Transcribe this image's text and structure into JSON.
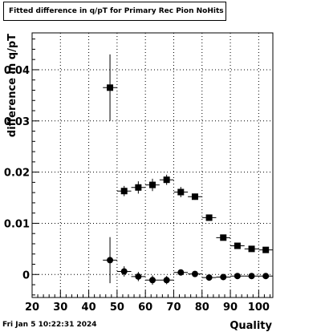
{
  "timestamp": "Fri Jan  5 10:22:31 2024",
  "chart_data": {
    "type": "scatter",
    "title": "Fitted difference in q/pT for Primary Rec Pion NoHits",
    "xlabel": "Quality",
    "ylabel": "difference in q/pT",
    "xlim": [
      20,
      105
    ],
    "ylim": [
      -0.0045,
      0.0472
    ],
    "xticks": [
      "20",
      "30",
      "40",
      "50",
      "60",
      "70",
      "80",
      "90",
      "100"
    ],
    "yticks": [
      "0",
      "0.01",
      "0.02",
      "0.03",
      "0.04"
    ],
    "grid": true,
    "series": [
      {
        "marker": "square",
        "points": [
          {
            "x": 47.5,
            "y": 0.0365,
            "err": 0.0065
          },
          {
            "x": 52.5,
            "y": 0.0163,
            "err": 0.001
          },
          {
            "x": 57.5,
            "y": 0.017,
            "err": 0.0012
          },
          {
            "x": 62.5,
            "y": 0.0175,
            "err": 0.0012
          },
          {
            "x": 67.5,
            "y": 0.0185,
            "err": 0.001
          },
          {
            "x": 72.5,
            "y": 0.0161,
            "err": 0.001
          },
          {
            "x": 77.5,
            "y": 0.0152,
            "err": 0.0006
          },
          {
            "x": 82.5,
            "y": 0.0111,
            "err": 0.0004
          },
          {
            "x": 87.5,
            "y": 0.0072,
            "err": 0.0004
          },
          {
            "x": 92.5,
            "y": 0.0056,
            "err": 0.0003
          },
          {
            "x": 97.5,
            "y": 0.005,
            "err": 0.0002
          },
          {
            "x": 102.5,
            "y": 0.0048,
            "err": 0.0002
          }
        ]
      },
      {
        "marker": "circle",
        "points": [
          {
            "x": 47.5,
            "y": 0.0028,
            "err": 0.0045
          },
          {
            "x": 52.5,
            "y": 0.0006,
            "err": 0.001
          },
          {
            "x": 57.5,
            "y": -0.0004,
            "err": 0.0009
          },
          {
            "x": 62.5,
            "y": -0.0011,
            "err": 0.0009
          },
          {
            "x": 67.5,
            "y": -0.0011,
            "err": 0.0008
          },
          {
            "x": 72.5,
            "y": 0.0004,
            "err": 0.0005
          },
          {
            "x": 77.5,
            "y": 0.0001,
            "err": 0.0004
          },
          {
            "x": 82.5,
            "y": -0.0006,
            "err": 0.0003
          },
          {
            "x": 87.5,
            "y": -0.0005,
            "err": 0.0003
          },
          {
            "x": 92.5,
            "y": -0.0003,
            "err": 0.0002
          },
          {
            "x": 97.5,
            "y": -0.0003,
            "err": 0.0002
          },
          {
            "x": 102.5,
            "y": -0.0003,
            "err": 0.0002
          }
        ]
      }
    ]
  }
}
